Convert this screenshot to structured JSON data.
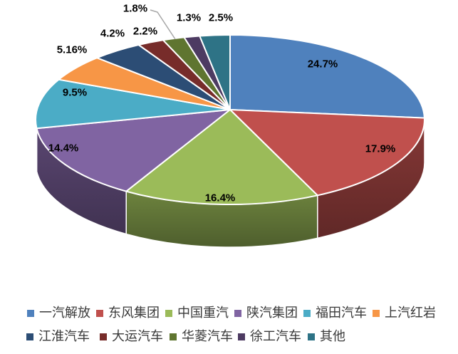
{
  "chart_data": {
    "type": "pie",
    "style": "3d-perspective",
    "title": "",
    "direction": "clockwise",
    "start_angle_deg": 0,
    "background": "#FFFFFF",
    "label_color": "#000000",
    "leader_line_color": "#A6A6A6",
    "slice_separator_color": "#FFFFFF",
    "legend_position": "bottom",
    "legend_rows": [
      [
        0,
        1,
        2,
        3,
        4,
        5
      ],
      [
        6,
        7,
        8,
        9,
        10
      ]
    ],
    "slices": [
      {
        "label": "一汽解放",
        "value": 24.7,
        "display": "24.7%",
        "color": "#4F81BD",
        "label_position": "inside"
      },
      {
        "label": "东风集团",
        "value": 17.9,
        "display": "17.9%",
        "color": "#C0504D",
        "label_position": "inside"
      },
      {
        "label": "中国重汽",
        "value": 16.4,
        "display": "16.4%",
        "color": "#9BBB59",
        "label_position": "inside"
      },
      {
        "label": "陕汽集团",
        "value": 14.4,
        "display": "14.4%",
        "color": "#8064A2",
        "label_position": "inside"
      },
      {
        "label": "福田汽车",
        "value": 9.5,
        "display": "9.5%",
        "color": "#4BACC6",
        "label_position": "inside"
      },
      {
        "label": "上汽红岩",
        "value": 5.16,
        "display": "5.16%",
        "color": "#F79646",
        "label_position": "outside"
      },
      {
        "label": "江淮汽车",
        "value": 4.2,
        "display": "4.2%",
        "color": "#2C4D75",
        "label_position": "outside"
      },
      {
        "label": "大运汽车",
        "value": 2.2,
        "display": "2.2%",
        "color": "#772C2A",
        "label_position": "outside"
      },
      {
        "label": "华菱汽车",
        "value": 1.8,
        "display": "1.8%",
        "color": "#5F7530",
        "label_position": "outside",
        "leader_line": true
      },
      {
        "label": "徐工汽车",
        "value": 1.3,
        "display": "1.3%",
        "color": "#4D3B62",
        "label_position": "outside"
      },
      {
        "label": "其他",
        "value": 2.5,
        "display": "2.5%",
        "color": "#2E7386",
        "label_position": "outside"
      }
    ]
  }
}
